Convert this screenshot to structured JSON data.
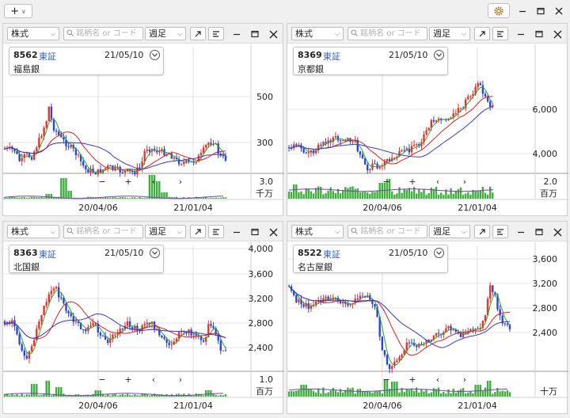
{
  "toolbar": {
    "add_label": "+",
    "add_icon": "plus-icon",
    "dropdown_icon": "chevron-down-icon",
    "settings_icon": "gear-icon",
    "window_buttons": [
      "minimize-icon",
      "maximize-icon",
      "close-icon"
    ]
  },
  "panels": [
    {
      "type_select": "株式",
      "search_placeholder": "銘柄名 or コード",
      "period_select": "週足",
      "code": "8562",
      "market": "東証",
      "date": "21/05/10",
      "name": "福島銀",
      "price_ticks": [
        "500",
        "300"
      ],
      "volume_tick": "3.0",
      "volume_unit": "千万",
      "x_ticks": [
        "20/04/06",
        "21/01/04"
      ]
    },
    {
      "type_select": "株式",
      "search_placeholder": "銘柄名 or コード",
      "period_select": "週足",
      "code": "8369",
      "market": "東証",
      "date": "21/05/10",
      "name": "京都銀",
      "price_ticks": [
        "6,000",
        "4,000"
      ],
      "volume_tick": "2.0",
      "volume_unit": "百万",
      "x_ticks": [
        "20/04/06",
        "21/01/04"
      ]
    },
    {
      "type_select": "株式",
      "search_placeholder": "銘柄名 or コード",
      "period_select": "週足",
      "code": "8363",
      "market": "東証",
      "date": "21/05/10",
      "name": "北国銀",
      "price_ticks": [
        "4,000",
        "3,600",
        "3,200",
        "2,800",
        "2,400"
      ],
      "volume_tick": "1.0",
      "volume_unit": "百万",
      "x_ticks": [
        "20/04/06",
        "21/01/04"
      ]
    },
    {
      "type_select": "株式",
      "search_placeholder": "銘柄名 or コード",
      "period_select": "週足",
      "code": "8522",
      "market": "東証",
      "date": "21/05/10",
      "name": "名古屋銀",
      "price_ticks": [
        "3,600",
        "3,200",
        "2,800",
        "2,400"
      ],
      "volume_tick": "",
      "volume_unit": "十万",
      "x_ticks": [
        "20/04/06",
        "21/01/04"
      ]
    }
  ],
  "colors": {
    "up_candle": "#e8322c",
    "down_candle": "#2c46d8",
    "ma_short": "#2ea52e",
    "ma_mid": "#d42020",
    "ma_long": "#3838c8",
    "volume": "#3fae3f"
  },
  "panel_icons": [
    "popout-icon",
    "menu-icon",
    "minimize-icon",
    "maximize-icon",
    "close-icon"
  ],
  "nav_icons": [
    "zoom-out-icon",
    "zoom-in-icon",
    "scroll-left-icon",
    "scroll-right-icon"
  ]
}
